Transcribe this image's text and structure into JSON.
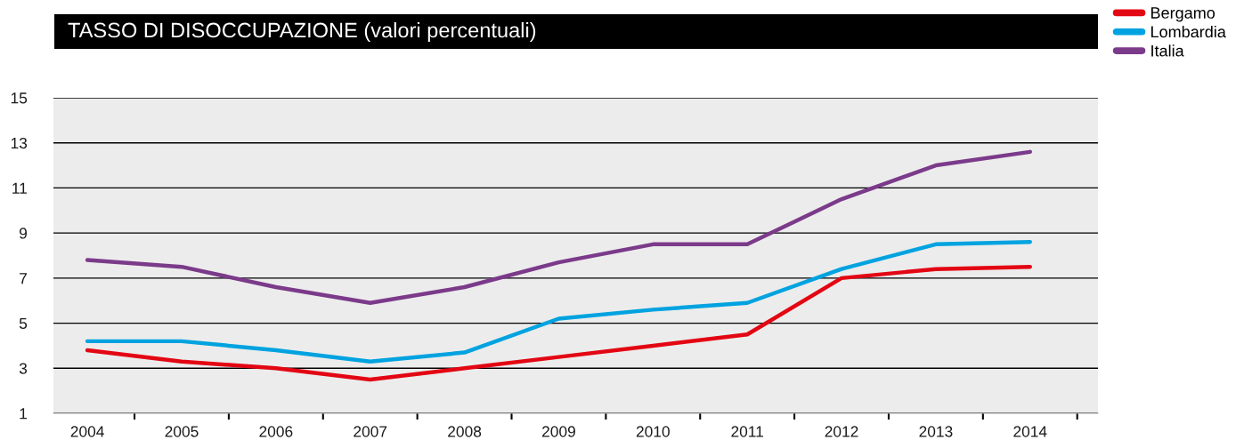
{
  "chart_data": {
    "type": "line",
    "title": "TASSO DI DISOCCUPAZIONE (valori percentuali)",
    "categories": [
      "2004",
      "2005",
      "2006",
      "2007",
      "2008",
      "2009",
      "2010",
      "2011",
      "2012",
      "2013",
      "2014"
    ],
    "series": [
      {
        "name": "Bergamo",
        "color": "#e30613",
        "values": [
          3.8,
          3.3,
          3.0,
          2.5,
          3.0,
          3.5,
          4.0,
          4.5,
          7.0,
          7.4,
          7.5
        ]
      },
      {
        "name": "Lombardia",
        "color": "#00a3e0",
        "values": [
          4.2,
          4.2,
          3.8,
          3.3,
          3.7,
          5.2,
          5.6,
          5.9,
          7.4,
          8.5,
          8.6
        ]
      },
      {
        "name": "Italia",
        "color": "#7b3a8a",
        "values": [
          7.8,
          7.5,
          6.6,
          5.9,
          6.6,
          7.7,
          8.5,
          8.5,
          10.5,
          12.0,
          12.6
        ]
      }
    ],
    "ylim": [
      1,
      15
    ],
    "yticks": [
      1,
      3,
      5,
      7,
      9,
      11,
      13,
      15
    ],
    "grid": "y",
    "legend": "top right",
    "marker": "none",
    "line_style": "solid"
  }
}
